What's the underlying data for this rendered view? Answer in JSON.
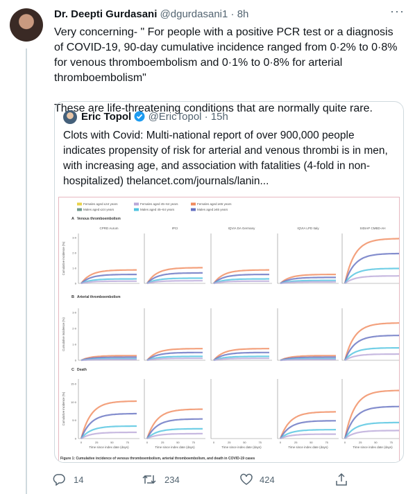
{
  "tweet": {
    "author": {
      "name": "Dr. Deepti Gurdasani",
      "handle": "@dgurdasani1",
      "time": "8h"
    },
    "paragraphs": [
      "Very concerning- \" For people with a positive PCR test or a diagnosis of COVID-19, 90-day cumulative incidence ranged from 0·2% to 0·8% for venous thromboembolism and 0·1% to 0·8% for arterial thromboembolism\"",
      "These are life-threatening conditions that are normally quite rare."
    ],
    "quote": {
      "name": "Eric Topol",
      "handle": "@EricTopol",
      "time": "15h",
      "text": "Clots with Covid: Multi-national report of over 900,000 people indicates propensity of risk for arterial and venous thrombi is in men, with increasing age, and association with fatalities (4-fold in non-hospitalized) ",
      "link": "thelancet.com/journals/lanin...",
      "figure": {
        "legend": [
          {
            "label": "Females aged ≤44 years",
            "color": "#e8d24a"
          },
          {
            "label": "Females aged 45–64 years",
            "color": "#b9a8d8"
          },
          {
            "label": "Females aged ≥65 years",
            "color": "#f08a5d"
          },
          {
            "label": "Males aged ≤44 years",
            "color": "#6f9a8d"
          },
          {
            "label": "Males aged 45–64 years",
            "color": "#4fc3e0"
          },
          {
            "label": "Males aged ≥65 years",
            "color": "#6470c0"
          }
        ],
        "rows": [
          {
            "label": "A",
            "title": "Venous thromboembolism",
            "yticks": [
              "0",
              "1·0",
              "2·0",
              "3·0"
            ]
          },
          {
            "label": "B",
            "title": "Arterial thromboembolism",
            "yticks": [
              "0",
              "1·0",
              "2·0",
              "3·0"
            ]
          },
          {
            "label": "C",
            "title": "Death",
            "yticks": [
              "0",
              "5·0",
              "10·0",
              "15·0"
            ]
          }
        ],
        "columns": [
          "CPRD Aurum",
          "IPCI",
          "IQVIA DA Germany",
          "IQVIA LPD Italy",
          "SIDIAP CMBD-AH"
        ],
        "y_label": "Cumulative incidence (%)",
        "x_label": "Time since index date (days)",
        "xticks": [
          "0",
          "25",
          "50",
          "75"
        ],
        "caption": "Figure 1: Cumulative incidence of venous thromboembolism, arterial thromboembolism, and death in COVID-19 cases"
      }
    },
    "actions": {
      "replies": "14",
      "retweets": "234",
      "likes": "424"
    }
  }
}
